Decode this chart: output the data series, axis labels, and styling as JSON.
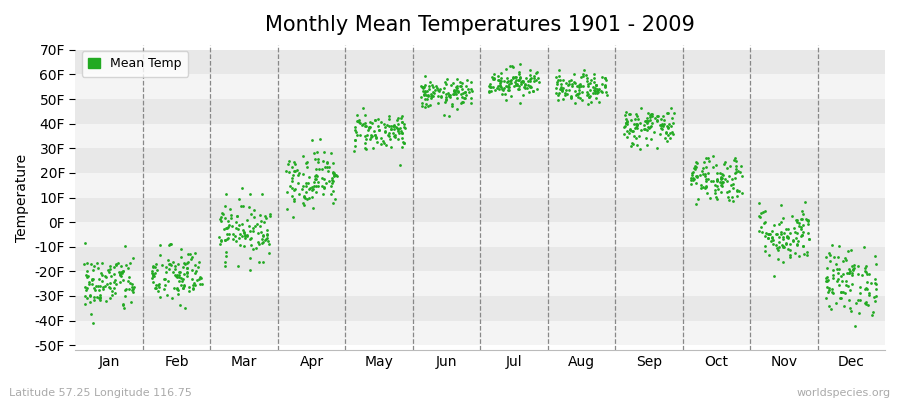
{
  "title": "Monthly Mean Temperatures 1901 - 2009",
  "ylabel": "Temperature",
  "xlabel_labels": [
    "Jan",
    "Feb",
    "Mar",
    "Apr",
    "May",
    "Jun",
    "Jul",
    "Aug",
    "Sep",
    "Oct",
    "Nov",
    "Dec"
  ],
  "ytick_labels": [
    "70F",
    "60F",
    "50F",
    "40F",
    "30F",
    "20F",
    "10F",
    "0F",
    "-10F",
    "-20F",
    "-30F",
    "-40F",
    "-50F"
  ],
  "ytick_values": [
    70,
    60,
    50,
    40,
    30,
    20,
    10,
    0,
    -10,
    -20,
    -30,
    -40,
    -50
  ],
  "ylim": [
    -52,
    72
  ],
  "xlim": [
    0.5,
    12.5
  ],
  "dot_color": "#22aa22",
  "dot_size": 4,
  "background_color": "#ffffff",
  "plot_bg_color": "#ffffff",
  "legend_label": "Mean Temp",
  "subtitle_left": "Latitude 57.25 Longitude 116.75",
  "subtitle_right": "worldspecies.org",
  "title_fontsize": 15,
  "label_fontsize": 10,
  "monthly_mean_temps_F": [
    -25,
    -22,
    -3,
    18,
    37,
    52,
    57,
    54,
    39,
    18,
    -5,
    -24
  ],
  "monthly_std_temps_F": [
    6,
    6,
    6,
    6,
    4,
    3,
    3,
    3,
    4,
    5,
    6,
    7
  ],
  "n_years": 109,
  "seed": 42,
  "stripe_colors": [
    "#e8e8e8",
    "#f4f4f4"
  ],
  "vline_color": "#888888",
  "vline_positions": [
    1.5,
    2.5,
    3.5,
    4.5,
    5.5,
    6.5,
    7.5,
    8.5,
    9.5,
    10.5,
    11.5
  ]
}
